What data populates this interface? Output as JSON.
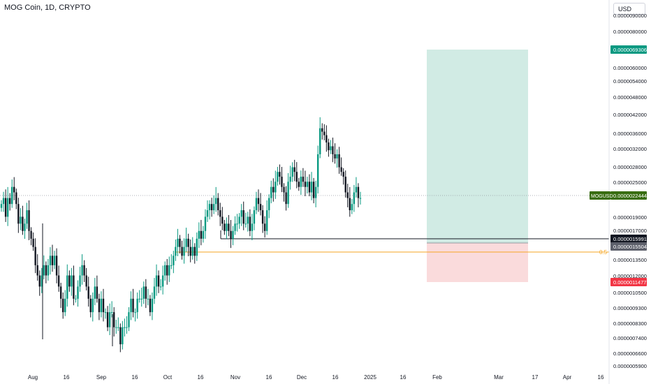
{
  "title": "MOG Coin, 1D, CRYPTO",
  "currency_button": "USD",
  "symbol_label": "MOGUSD",
  "chart_data": {
    "type": "candlestick",
    "title": "MOG Coin, 1D, CRYPTO",
    "y_scale": "log",
    "ylim": [
      5.9e-06,
      9.5e-06
    ],
    "price_ticks": [
      "0.0000090000",
      "0.0000080000",
      "0.0000060000",
      "0.0000054000",
      "0.0000048000",
      "0.0000042000",
      "0.0000036000",
      "0.0000032000",
      "0.0000028000",
      "0.0000025000",
      "0.0000019000",
      "0.0000017000",
      "0.0000013500",
      "0.0000012000",
      "0.0000010500",
      "0.0000009300",
      "0.0000008300",
      "0.0000007400",
      "0.0000006600",
      "0.0000005900"
    ],
    "time_ticks": [
      "Aug",
      "16",
      "Sep",
      "16",
      "Oct",
      "16",
      "Nov",
      "16",
      "Dec",
      "16",
      "2025",
      "16",
      "Feb",
      "Mar",
      "17",
      "Apr",
      "16"
    ],
    "current_price": "0.0000022444",
    "price_tags": {
      "target": "0.0000069306",
      "entry_line": "0.0000015991",
      "entry": "0.0000015504",
      "stop": "0.0000011477"
    },
    "fib_label": "0.5",
    "position_tool": {
      "type": "long",
      "target": 6.9306e-06,
      "entry": 1.5504e-06,
      "stop": 1.1477e-06
    },
    "candles_close": [
      2.1e-06,
      2.2e-06,
      1.9e-06,
      2.2e-06,
      2.1e-06,
      2.4e-06,
      2.3e-06,
      2.1e-06,
      1.8e-06,
      1.9e-06,
      1.7e-06,
      1.8e-06,
      2e-06,
      1.7e-06,
      1.6e-06,
      1.5e-06,
      1.3e-06,
      1.2e-06,
      1.1e-06,
      1.2e-06,
      1.3e-06,
      1.2e-06,
      1.3e-06,
      1.4e-06,
      1.3e-06,
      1.4e-06,
      1.2e-06,
      1.1e-06,
      1e-06,
      9e-07,
      1e-06,
      1.2e-06,
      1.1e-06,
      1.2e-06,
      1e-06,
      1e-06,
      1.1e-06,
      1.2e-06,
      1.3e-06,
      1.2e-06,
      1.1e-06,
      1e-06,
      9e-07,
      1e-06,
      1.1e-06,
      1e-06,
      9e-07,
      1e-06,
      9e-07,
      9e-07,
      8e-07,
      9e-07,
      9e-07,
      8e-07,
      8e-07,
      8e-07,
      7e-07,
      8e-07,
      8e-07,
      8e-07,
      9e-07,
      1e-06,
      9e-07,
      9e-07,
      1e-06,
      1e-06,
      1e-06,
      1.1e-06,
      1e-06,
      1e-06,
      9e-07,
      1e-06,
      1.1e-06,
      1.2e-06,
      1.1e-06,
      1.1e-06,
      1.2e-06,
      1.3e-06,
      1.2e-06,
      1.3e-06,
      1.3e-06,
      1.4e-06,
      1.5e-06,
      1.6e-06,
      1.5e-06,
      1.4e-06,
      1.5e-06,
      1.6e-06,
      1.5e-06,
      1.4e-06,
      1.5e-06,
      1.4e-06,
      1.6e-06,
      1.7e-06,
      1.6e-06,
      1.7e-06,
      1.9e-06,
      2e-06,
      2.1e-06,
      2e-06,
      2.1e-06,
      2.2e-06,
      2e-06,
      1.9e-06,
      1.8e-06,
      1.7e-06,
      1.8e-06,
      1.7e-06,
      1.6e-06,
      1.7e-06,
      1.8e-06,
      1.8e-06,
      1.9e-06,
      2e-06,
      1.8e-06,
      1.8e-06,
      1.9e-06,
      1.7e-06,
      1.8e-06,
      2e-06,
      2.2e-06,
      2.1e-06,
      2e-06,
      1.8e-06,
      1.7e-06,
      2e-06,
      2.2e-06,
      2.4e-06,
      2.3e-06,
      2.5e-06,
      2.7e-06,
      2.6e-06,
      2.4e-06,
      2.3e-06,
      2.1e-06,
      2.5e-06,
      2.6e-06,
      2.8e-06,
      2.7e-06,
      2.5e-06,
      2.4e-06,
      2.6e-06,
      2.5e-06,
      2.4e-06,
      2.5e-06,
      2.3e-06,
      2.5e-06,
      2.2e-06,
      2.4e-06,
      3.1e-06,
      3.8e-06,
      3.7e-06,
      3.6e-06,
      3.4e-06,
      3.2e-06,
      3.3e-06,
      3.1e-06,
      3e-06,
      3.1e-06,
      2.8e-06,
      2.7e-06,
      2.6e-06,
      2.3e-06,
      2.2e-06,
      2e-06,
      2.1e-06,
      2.3e-06,
      2.4e-06,
      2.2e-06,
      2.2e-06
    ]
  },
  "colors": {
    "up": "#089981",
    "down": "#131722",
    "target_zone": "#d1ebe4",
    "stop_zone": "#fadbdc",
    "target_tag": "#089981",
    "stop_tag": "#f23645",
    "current_tag": "#386d11",
    "entry_tag": "#131722",
    "entry_gray_tag": "#5d606b",
    "fib": "#f5a623"
  }
}
